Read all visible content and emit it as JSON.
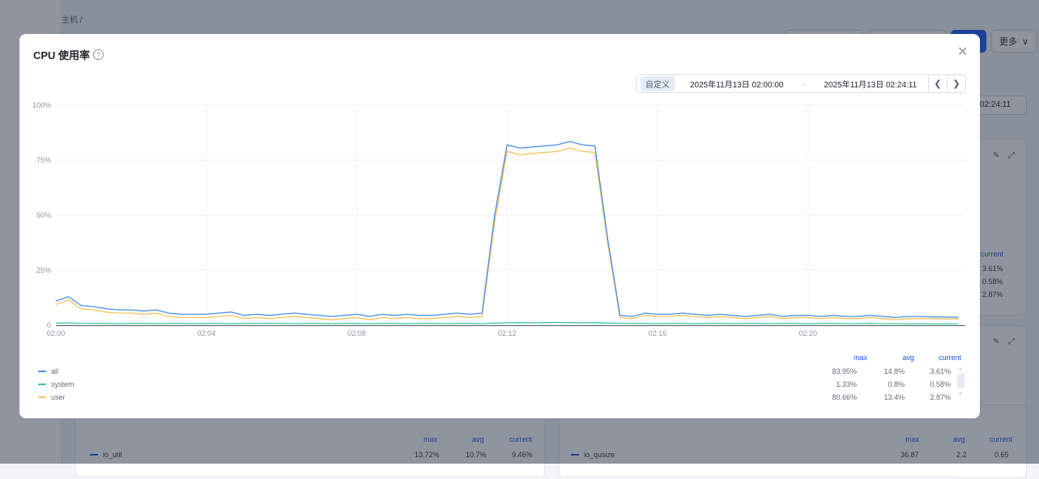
{
  "background": {
    "breadcrumb": "主机 /",
    "more_button": "更多",
    "time_end_partial": "02:24:11",
    "cpu_panel_legend": {
      "current_header": "current",
      "values": [
        "3.61%",
        "0.58%",
        "2.87%"
      ]
    },
    "io_util_panel": {
      "series": "io_util",
      "headers": [
        "max",
        "avg",
        "current"
      ],
      "values": [
        "13.72%",
        "10.7%",
        "9.46%"
      ]
    },
    "io_qusize_panel": {
      "series": "io_qusize",
      "headers": [
        "max",
        "avg",
        "current"
      ],
      "values": [
        "36.87",
        "2.2",
        "0.65"
      ]
    }
  },
  "modal": {
    "title": "CPU 使用率",
    "help_icon": "question-circle-icon",
    "close_icon": "close-icon",
    "time_range": {
      "mode": "自定义",
      "start": "2025年11月13日 02:00:00",
      "separator": "→",
      "end": "2025年11月13日 02:24:11",
      "prev_icon": "chevron-left-icon",
      "next_icon": "chevron-right-icon"
    },
    "legend": {
      "headers": {
        "max": "max",
        "avg": "avg",
        "current": "current"
      },
      "rows": [
        {
          "name": "all",
          "max": "83.95%",
          "avg": "14.8%",
          "current": "3.61%"
        },
        {
          "name": "system",
          "max": "1.33%",
          "avg": "0.8%",
          "current": "0.58%"
        },
        {
          "name": "user",
          "max": "80.66%",
          "avg": "13.4%",
          "current": "2.87%"
        }
      ]
    }
  },
  "chart_data": {
    "type": "line",
    "x_unit": "time (HH:MM), samples every 20 s from 02:00:00",
    "x_ticks": [
      "02:00",
      "02:04",
      "02:08",
      "02:12",
      "02:16",
      "02:20"
    ],
    "x_range": [
      "02:00:00",
      "02:24:11"
    ],
    "y_ticks": [
      "0",
      "25%",
      "50%",
      "75%",
      "100%"
    ],
    "ylim": [
      0,
      100
    ],
    "grid": true,
    "legend_placement": "bottom",
    "series": [
      {
        "name": "all",
        "color": "#4a90e2",
        "values": [
          11,
          13,
          9,
          8.5,
          7.5,
          7,
          7,
          6.5,
          7,
          5.5,
          5,
          5,
          5,
          5.5,
          6,
          4.5,
          5,
          4.5,
          5,
          5.5,
          5,
          4.5,
          4,
          4.5,
          5,
          4,
          5,
          4.5,
          5,
          4.5,
          4.5,
          5,
          5.5,
          5,
          5.5,
          50,
          82,
          80.5,
          81,
          81.5,
          82,
          83.5,
          82,
          81.5,
          40,
          4.5,
          4,
          5.5,
          5,
          5,
          5.5,
          5,
          4.5,
          5,
          4.5,
          4,
          4.5,
          5,
          4,
          4.5,
          4.5,
          4,
          4.5,
          4,
          4,
          4.5,
          4,
          3.5,
          4,
          4,
          3.8,
          3.7,
          3.61
        ]
      },
      {
        "name": "system",
        "color": "#3cc79a",
        "values": [
          1,
          1.1,
          0.9,
          0.8,
          0.8,
          0.7,
          0.8,
          0.8,
          0.7,
          0.8,
          0.8,
          0.7,
          0.8,
          0.8,
          0.7,
          0.8,
          0.8,
          0.9,
          0.8,
          0.7,
          0.8,
          0.8,
          0.7,
          0.8,
          0.8,
          0.7,
          0.8,
          0.8,
          0.7,
          0.8,
          0.8,
          0.7,
          0.8,
          0.8,
          0.7,
          1,
          1.1,
          1.2,
          1.1,
          1.2,
          1.3,
          1.2,
          1.1,
          1.2,
          1,
          0.9,
          0.8,
          0.8,
          0.7,
          0.8,
          0.8,
          0.7,
          0.8,
          0.8,
          0.7,
          0.8,
          0.8,
          0.7,
          0.8,
          0.8,
          0.7,
          0.8,
          0.8,
          0.7,
          0.7,
          0.8,
          0.7,
          0.7,
          0.6,
          0.7,
          0.6,
          0.6,
          0.58
        ]
      },
      {
        "name": "user",
        "color": "#f5c35b",
        "values": [
          9.5,
          11.5,
          7.5,
          7,
          6,
          5.5,
          5.5,
          5,
          5.5,
          4,
          3.5,
          3.5,
          3.5,
          4,
          4.5,
          3,
          3.5,
          3,
          3.5,
          4,
          3.5,
          3,
          2.5,
          3,
          3.5,
          2.5,
          3.5,
          3,
          3.5,
          3,
          3,
          3.5,
          4,
          3.5,
          4,
          47,
          79,
          77.5,
          78,
          78.5,
          79,
          80.5,
          79,
          78.5,
          38,
          3.5,
          3,
          4.5,
          4,
          4,
          4.5,
          4,
          3.5,
          4,
          3.5,
          3,
          3.5,
          4,
          3,
          3.5,
          3.5,
          3,
          3.5,
          3,
          3,
          3.5,
          3,
          2.5,
          3,
          3,
          3,
          2.9,
          2.87
        ]
      }
    ]
  }
}
